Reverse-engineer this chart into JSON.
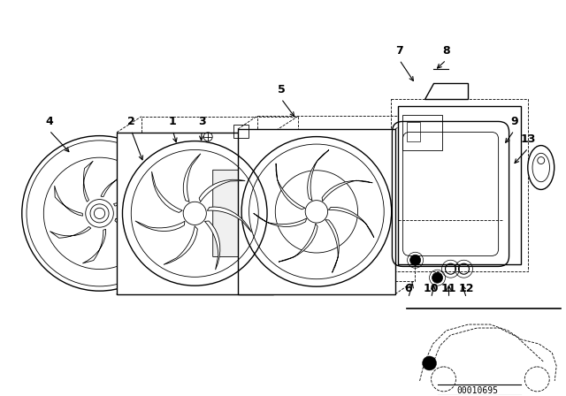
{
  "background_color": "#ffffff",
  "line_color": "#000000",
  "fig_width": 6.4,
  "fig_height": 4.48,
  "dpi": 100,
  "diagram_code_text": "00010695"
}
